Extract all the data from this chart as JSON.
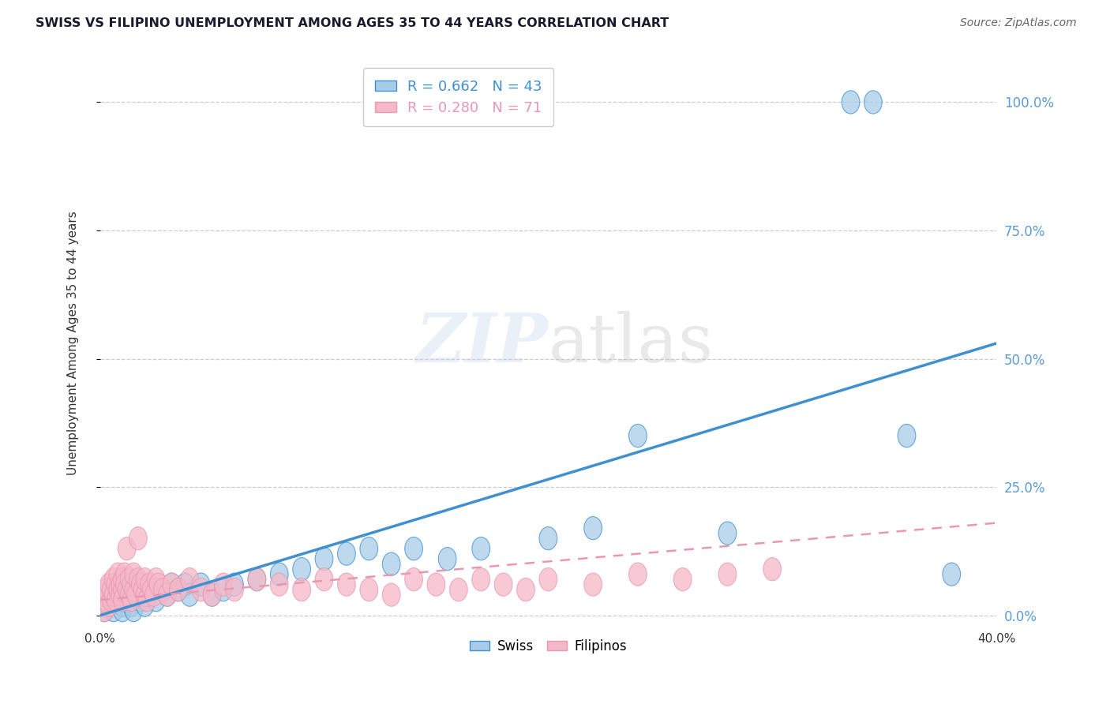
{
  "title": "SWISS VS FILIPINO UNEMPLOYMENT AMONG AGES 35 TO 44 YEARS CORRELATION CHART",
  "source": "Source: ZipAtlas.com",
  "ylabel": "Unemployment Among Ages 35 to 44 years",
  "ytick_labels": [
    "0.0%",
    "25.0%",
    "50.0%",
    "75.0%",
    "100.0%"
  ],
  "ytick_values": [
    0,
    25,
    50,
    75,
    100
  ],
  "xlim": [
    0,
    40
  ],
  "ylim": [
    -2,
    108
  ],
  "legend_swiss_label": "R = 0.662   N = 43",
  "legend_fil_label": "R = 0.280   N = 71",
  "legend_swiss_color_label": "R = 0.662",
  "legend_swiss_n_label": "N = 43",
  "legend_fil_color_label": "R = 0.280",
  "legend_fil_n_label": "N = 71",
  "swiss_color": "#a8cce8",
  "filipino_color": "#f5b8c8",
  "swiss_line_color": "#4090d0",
  "filipino_line_color": "#e898b0",
  "swiss_reg_x0": 0,
  "swiss_reg_y0": 0,
  "swiss_reg_x1": 40,
  "swiss_reg_y1": 53,
  "fil_reg_x0": 0,
  "fil_reg_y0": 3,
  "fil_reg_x1": 40,
  "fil_reg_y1": 18,
  "watermark": "ZIPatlas",
  "background_color": "#ffffff",
  "grid_color": "#c8c8c8",
  "title_color": "#1a1a2e",
  "source_color": "#666666",
  "ylabel_color": "#333333",
  "ytick_color": "#5b9bd5",
  "xtick_color": "#333333"
}
